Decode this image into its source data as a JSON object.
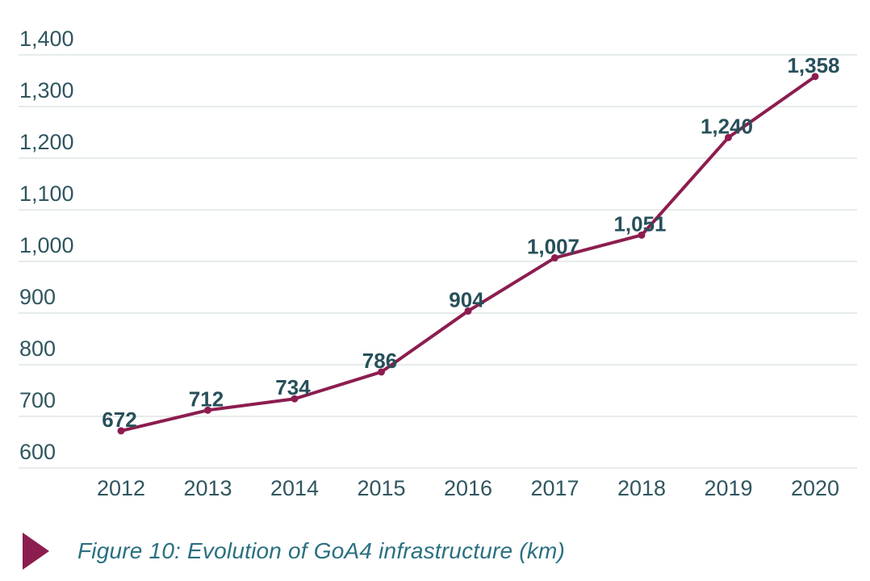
{
  "chart_data": {
    "type": "line",
    "title": "Figure 10: Evolution of GoA4 infrastructure (km)",
    "categories": [
      "2012",
      "2013",
      "2014",
      "2015",
      "2016",
      "2017",
      "2018",
      "2019",
      "2020"
    ],
    "values": [
      672,
      712,
      734,
      786,
      904,
      1007,
      1051,
      1240,
      1358
    ],
    "point_labels": [
      "672",
      "712",
      "734",
      "786",
      "904",
      "1,007",
      "1,051",
      "1,240",
      "1,358"
    ],
    "xlabel": "",
    "ylabel": "",
    "ylim": [
      600,
      1400
    ],
    "ytick_step": 100,
    "ytick_labels": [
      "600",
      "700",
      "800",
      "900",
      "1,000",
      "1,100",
      "1,200",
      "1,300",
      "1,400"
    ],
    "grid": "horizontal",
    "legend_position": "none"
  },
  "caption": {
    "text": "Figure 10: Evolution of GoA4 infrastructure (km)"
  },
  "colors": {
    "line": "#8c1d4f",
    "point": "#8c1d4f",
    "axis_text": "#30565f",
    "data_label_text": "#27505a",
    "gridline": "#e6eceb",
    "caption_text": "#2a7080",
    "caption_marker": "#8c1d4f",
    "background": "#ffffff"
  }
}
